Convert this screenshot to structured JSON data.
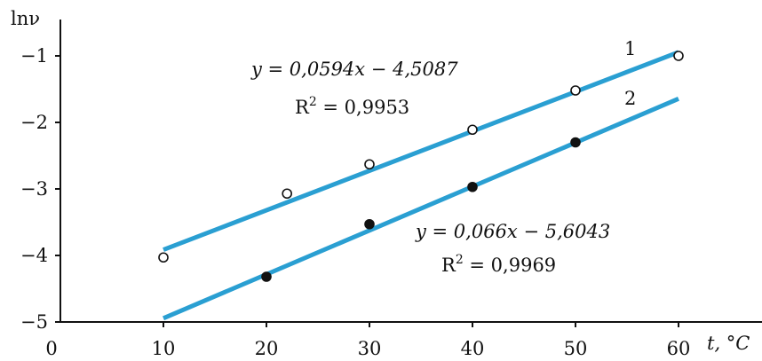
{
  "chart_data": {
    "type": "scatter",
    "xlabel": "t, °C",
    "ylabel": "lnν",
    "xlim": [
      0,
      63
    ],
    "ylim": [
      -5,
      -0.5
    ],
    "x_ticks": [
      0,
      10,
      20,
      30,
      40,
      50,
      60
    ],
    "y_ticks": [
      -1,
      -2,
      -3,
      -4,
      -5
    ],
    "x_tick_labels": [
      "0",
      "10",
      "20",
      "30",
      "40",
      "50",
      "60"
    ],
    "y_tick_labels": [
      "−1",
      "−2",
      "−3",
      "−4",
      "−5"
    ],
    "grid": false,
    "line_color": "#2a9fd2",
    "series": [
      {
        "name": "1",
        "marker": "open-circle",
        "points": [
          {
            "x": 10,
            "y": -4.03
          },
          {
            "x": 22,
            "y": -3.07
          },
          {
            "x": 30,
            "y": -2.63
          },
          {
            "x": 40,
            "y": -2.11
          },
          {
            "x": 50,
            "y": -1.52
          },
          {
            "x": 60,
            "y": -1.0
          }
        ],
        "fit": {
          "slope": 0.0594,
          "intercept": -4.5087,
          "x_range": [
            10,
            60
          ]
        },
        "equation": "y = 0,0594x − 4,5087",
        "r2_label": "R",
        "r2_value": " = 0,9953"
      },
      {
        "name": "2",
        "marker": "filled-circle",
        "points": [
          {
            "x": 20,
            "y": -4.32
          },
          {
            "x": 30,
            "y": -3.53
          },
          {
            "x": 40,
            "y": -2.97
          },
          {
            "x": 50,
            "y": -2.3
          }
        ],
        "fit": {
          "slope": 0.066,
          "intercept": -5.6043,
          "x_range": [
            10,
            60
          ]
        },
        "equation": "y = 0,066x − 5,6043",
        "r2_label": "R",
        "r2_value": " = 0,9969"
      }
    ]
  }
}
